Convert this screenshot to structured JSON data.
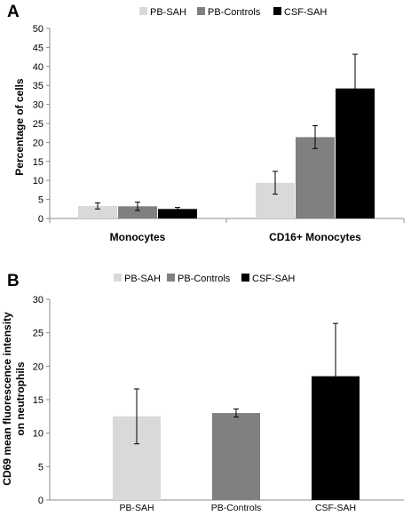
{
  "chart_data": [
    {
      "type": "bar",
      "panel_label": "A",
      "categories": [
        "Monocytes",
        "CD16+ Monocytes"
      ],
      "ylabel": "Percentage of cells",
      "xlabel": "",
      "ylim": [
        0,
        50
      ],
      "yticks": [
        0,
        5,
        10,
        15,
        20,
        25,
        30,
        35,
        40,
        45,
        50
      ],
      "legend_position": "top",
      "series": [
        {
          "name": "PB-SAH",
          "color": "#d9d9d9",
          "values": [
            3.3,
            9.4
          ],
          "errors": [
            0.8,
            3.0
          ]
        },
        {
          "name": "PB-Controls",
          "color": "#808080",
          "values": [
            3.2,
            21.4
          ],
          "errors": [
            1.1,
            3.0
          ]
        },
        {
          "name": "CSF-SAH",
          "color": "#000000",
          "values": [
            2.5,
            34.2
          ],
          "errors": [
            0.4,
            9.0
          ]
        }
      ]
    },
    {
      "type": "bar",
      "panel_label": "B",
      "categories": [
        "PB-SAH",
        "PB-Controls",
        "CSF-SAH"
      ],
      "ylabel": "CD69 mean fluorescence intensity on neutrophils",
      "ylabel_lines": [
        "CD69 mean fluorescence intensity",
        "on neutrophils"
      ],
      "xlabel": "",
      "ylim": [
        0,
        30
      ],
      "yticks": [
        0,
        5,
        10,
        15,
        20,
        25,
        30
      ],
      "legend_position": "top",
      "legend": [
        {
          "name": "PB-SAH",
          "color": "#d9d9d9"
        },
        {
          "name": "PB-Controls",
          "color": "#808080"
        },
        {
          "name": "CSF-SAH",
          "color": "#000000"
        }
      ],
      "values": [
        12.5,
        13.0,
        18.5
      ],
      "errors": [
        4.1,
        0.6,
        7.9
      ],
      "colors": [
        "#d9d9d9",
        "#808080",
        "#000000"
      ]
    }
  ]
}
